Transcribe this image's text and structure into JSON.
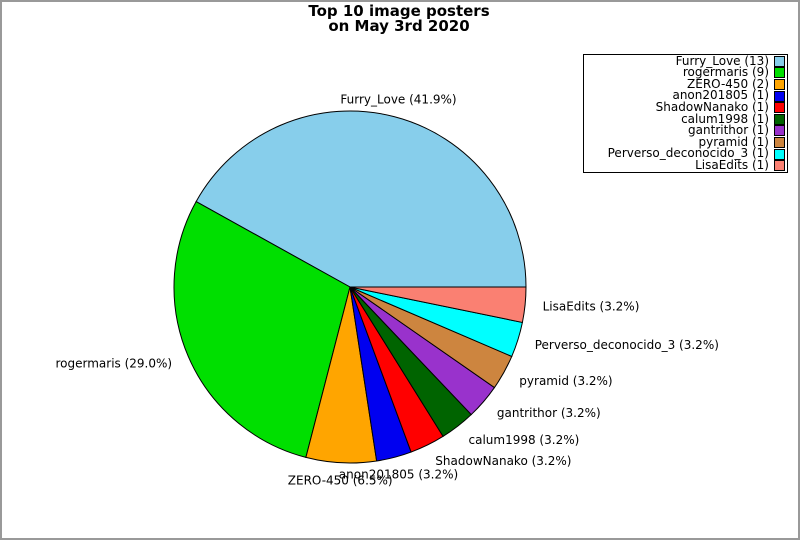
{
  "title": {
    "line1": "Top 10 image posters",
    "line2": "on May 3rd 2020"
  },
  "chart_data": {
    "type": "pie",
    "title": "Top 10 image posters on May 3rd 2020",
    "legend_position": "upper right",
    "start_angle_deg": 0,
    "direction": "counterclockwise",
    "total_count": 31,
    "slices": [
      {
        "label": "Furry_Love",
        "count": 13,
        "pct_label": "41.9%",
        "legend_label": "Furry_Love (13)",
        "wedge_label": "Furry_Love (41.9%)",
        "color": "#87CEEB"
      },
      {
        "label": "rogermaris",
        "count": 9,
        "pct_label": "29.0%",
        "legend_label": "rogermaris (9)",
        "wedge_label": "rogermaris (29.0%)",
        "color": "#00DF00"
      },
      {
        "label": "ZERO-450",
        "count": 2,
        "pct_label": "6.5%",
        "legend_label": "ZERO-450 (2)",
        "wedge_label": "ZERO-450 (6.5%)",
        "color": "#FFA500"
      },
      {
        "label": "anon201805",
        "count": 1,
        "pct_label": "3.2%",
        "legend_label": "anon201805 (1)",
        "wedge_label": "anon201805 (3.2%)",
        "color": "#0000F0"
      },
      {
        "label": "ShadowNanako",
        "count": 1,
        "pct_label": "3.2%",
        "legend_label": "ShadowNanako (1)",
        "wedge_label": "ShadowNanako (3.2%)",
        "color": "#FF0000"
      },
      {
        "label": "calum1998",
        "count": 1,
        "pct_label": "3.2%",
        "legend_label": "calum1998 (1)",
        "wedge_label": "calum1998 (3.2%)",
        "color": "#006400"
      },
      {
        "label": "gantrithor",
        "count": 1,
        "pct_label": "3.2%",
        "legend_label": "gantrithor (1)",
        "wedge_label": "gantrithor (3.2%)",
        "color": "#9932CC"
      },
      {
        "label": "pyramid",
        "count": 1,
        "pct_label": "3.2%",
        "legend_label": "pyramid (1)",
        "wedge_label": "pyramid (3.2%)",
        "color": "#CD853F"
      },
      {
        "label": "Perverso_deconocido_3",
        "count": 1,
        "pct_label": "3.2%",
        "legend_label": "Perverso_deconocido_3 (1)",
        "wedge_label": "Perverso_deconocido_3 (3.2%)",
        "color": "#00FFFF"
      },
      {
        "label": "LisaEdits",
        "count": 1,
        "pct_label": "3.2%",
        "legend_label": "LisaEdits (1)",
        "wedge_label": "LisaEdits (3.2%)",
        "color": "#FA8072"
      }
    ]
  }
}
